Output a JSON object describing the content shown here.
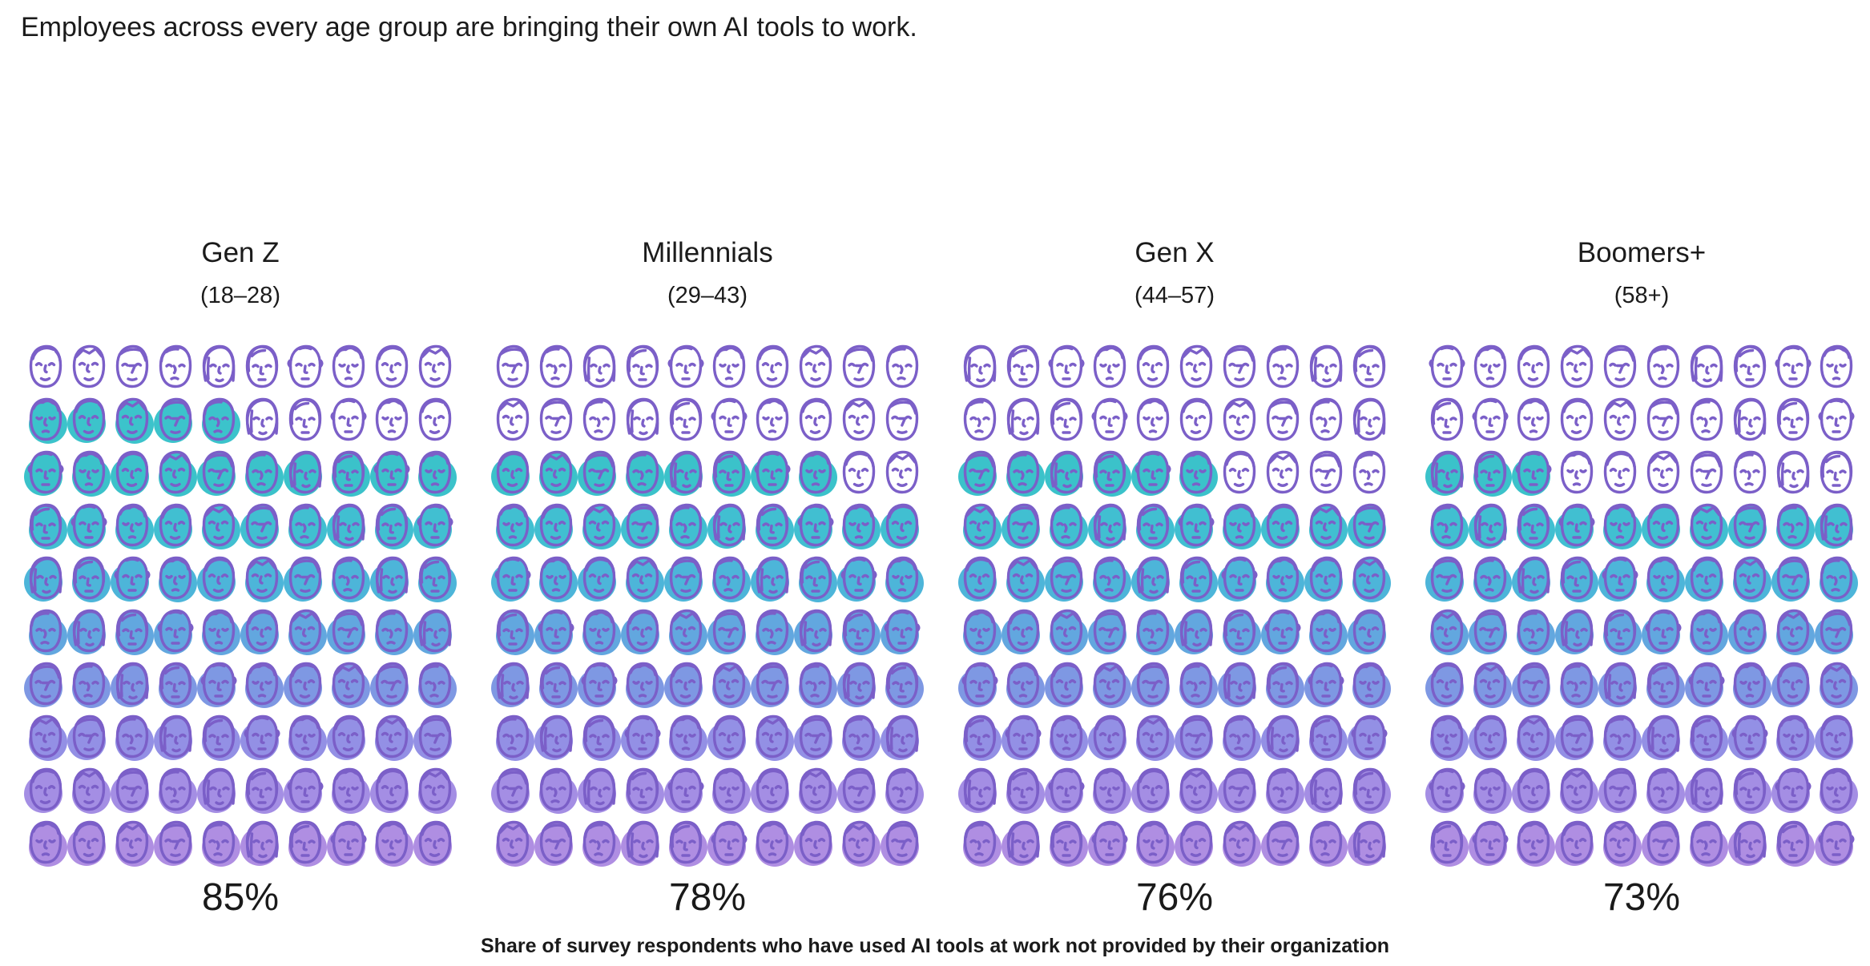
{
  "title": "Employees across every age group are bringing their own AI tools to work.",
  "footer": {
    "text": "Share of survey respondents who have used AI tools at work not provided by their organization"
  },
  "icons": {
    "cell_icon": "doodle-face-icon"
  },
  "chart_data": {
    "type": "pictograph",
    "title": "Employees across every age group are bringing their own AI tools to work.",
    "caption": "Share of survey respondents who have used AI tools at work not provided by their organization",
    "unit": "1 face icon = 1% of respondents (10 x 10 grid per group)",
    "grid": {
      "rows": 10,
      "cols": 10
    },
    "fill_direction": "bottom rows fill first; partial row fills left-to-right",
    "categories": [
      "Gen Z",
      "Millennials",
      "Gen X",
      "Boomers+"
    ],
    "age_ranges": [
      "(18–28)",
      "(29–43)",
      "(44–57)",
      "(58+)"
    ],
    "values": [
      85,
      78,
      76,
      73
    ],
    "value_labels": [
      "85%",
      "78%",
      "76%",
      "73%"
    ],
    "legend_position": "none",
    "grid_lines": false,
    "colors": {
      "outline": "#7B5FC8",
      "unfilled_face": "#FFFFFF",
      "text": "#1B1B1B",
      "row_fills": [
        "#3CC3CB",
        "#3CC3CB",
        "#3BC2CA",
        "#41BFD1",
        "#4DB5D9",
        "#62A7DF",
        "#7E98E3",
        "#9390E5",
        "#A48EE4",
        "#AF8EE2"
      ]
    }
  }
}
